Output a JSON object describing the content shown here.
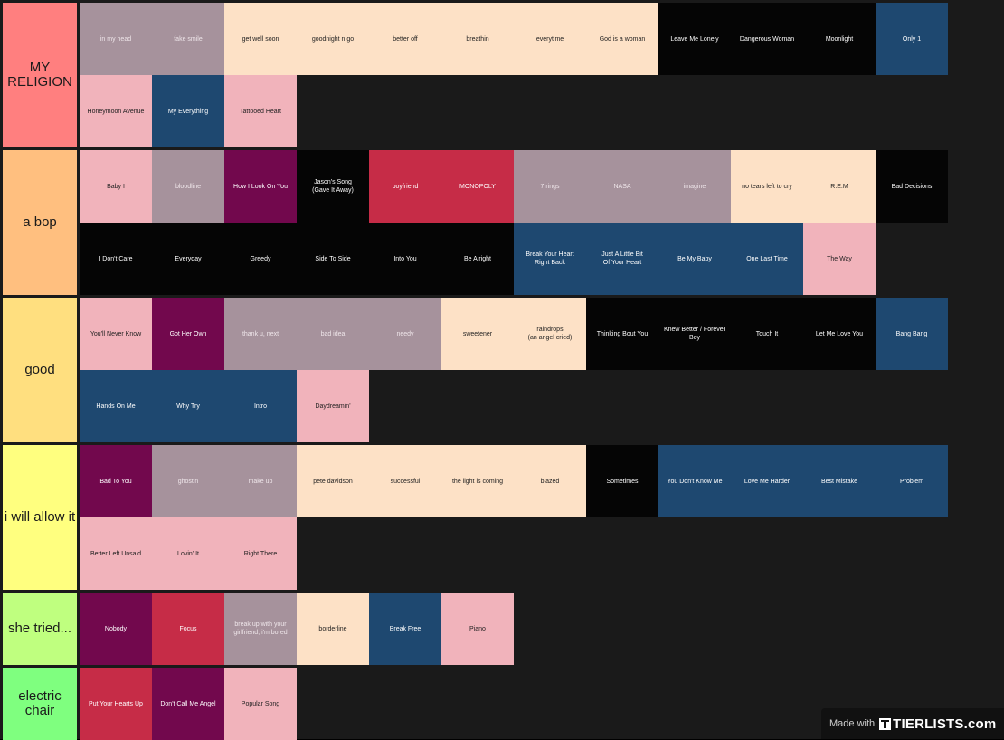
{
  "tiers": [
    {
      "label": "MY RELIGION",
      "color": "#ff7f7f",
      "items": [
        {
          "title": "in my head",
          "color": "mauve"
        },
        {
          "title": "fake smile",
          "color": "mauve"
        },
        {
          "title": "get well soon",
          "color": "peach"
        },
        {
          "title": "goodnight n go",
          "color": "peach"
        },
        {
          "title": "better off",
          "color": "peach"
        },
        {
          "title": "breathin",
          "color": "peach"
        },
        {
          "title": "everytime",
          "color": "peach"
        },
        {
          "title": "God is a woman",
          "color": "peach"
        },
        {
          "title": "Leave Me Lonely",
          "color": "black"
        },
        {
          "title": "Dangerous Woman",
          "color": "black"
        },
        {
          "title": "Moonlight",
          "color": "black"
        },
        {
          "title": "Only 1",
          "color": "navy"
        },
        {
          "title": "Honeymoon Avenue",
          "color": "pink"
        },
        {
          "title": "My Everything",
          "color": "navy"
        },
        {
          "title": "Tattooed Heart",
          "color": "pink"
        }
      ]
    },
    {
      "label": "a bop",
      "color": "#ffbf7f",
      "items": [
        {
          "title": "Baby I",
          "color": "pink"
        },
        {
          "title": "bloodline",
          "color": "mauve"
        },
        {
          "title": "How I Look On You",
          "color": "purple"
        },
        {
          "title": "Jason's Song\n(Gave It Away)",
          "color": "black"
        },
        {
          "title": "boyfriend",
          "color": "red"
        },
        {
          "title": "MONOPOLY",
          "color": "red"
        },
        {
          "title": "7 rings",
          "color": "mauve"
        },
        {
          "title": "NASA",
          "color": "mauve"
        },
        {
          "title": "imagine",
          "color": "mauve"
        },
        {
          "title": "no tears left to cry",
          "color": "peach"
        },
        {
          "title": "R.E.M",
          "color": "peach"
        },
        {
          "title": "Bad Decisions",
          "color": "black"
        },
        {
          "title": "I Don't Care",
          "color": "black"
        },
        {
          "title": "Everyday",
          "color": "black"
        },
        {
          "title": "Greedy",
          "color": "black"
        },
        {
          "title": "Side To Side",
          "color": "black"
        },
        {
          "title": "Into You",
          "color": "black"
        },
        {
          "title": "Be Alright",
          "color": "black"
        },
        {
          "title": "Break Your Heart\nRight Back",
          "color": "navy"
        },
        {
          "title": "Just A Little Bit\nOf Your Heart",
          "color": "navy"
        },
        {
          "title": "Be My Baby",
          "color": "navy"
        },
        {
          "title": "One Last Time",
          "color": "navy"
        },
        {
          "title": "The Way",
          "color": "pink"
        }
      ]
    },
    {
      "label": "good",
      "color": "#ffdf7f",
      "items": [
        {
          "title": "You'll Never Know",
          "color": "pink"
        },
        {
          "title": "Got Her Own",
          "color": "purple"
        },
        {
          "title": "thank u, next",
          "color": "mauve"
        },
        {
          "title": "bad idea",
          "color": "mauve"
        },
        {
          "title": "needy",
          "color": "mauve"
        },
        {
          "title": "sweetener",
          "color": "peach"
        },
        {
          "title": "raindrops\n(an angel cried)",
          "color": "peach"
        },
        {
          "title": "Thinking Bout You",
          "color": "black"
        },
        {
          "title": "Knew Better / Forever Boy",
          "color": "black"
        },
        {
          "title": "Touch It",
          "color": "black"
        },
        {
          "title": "Let Me Love You",
          "color": "black"
        },
        {
          "title": "Bang Bang",
          "color": "navy"
        },
        {
          "title": "Hands On Me",
          "color": "navy"
        },
        {
          "title": "Why Try",
          "color": "navy"
        },
        {
          "title": "Intro",
          "color": "navy"
        },
        {
          "title": "Daydreamin'",
          "color": "pink"
        }
      ]
    },
    {
      "label": "i will allow it",
      "color": "#ffff7f",
      "items": [
        {
          "title": "Bad To You",
          "color": "purple"
        },
        {
          "title": "ghostin",
          "color": "mauve"
        },
        {
          "title": "make up",
          "color": "mauve"
        },
        {
          "title": "pete davidson",
          "color": "peach"
        },
        {
          "title": "successful",
          "color": "peach"
        },
        {
          "title": "the light is coming",
          "color": "peach"
        },
        {
          "title": "blazed",
          "color": "peach"
        },
        {
          "title": "Sometimes",
          "color": "black"
        },
        {
          "title": "You Don't Know Me",
          "color": "navy"
        },
        {
          "title": "Love Me Harder",
          "color": "navy"
        },
        {
          "title": "Best Mistake",
          "color": "navy"
        },
        {
          "title": "Problem",
          "color": "navy"
        },
        {
          "title": "Better Left Unsaid",
          "color": "pink"
        },
        {
          "title": "Lovin' It",
          "color": "pink"
        },
        {
          "title": "Right There",
          "color": "pink"
        }
      ]
    },
    {
      "label": "she tried...",
      "color": "#bfff7f",
      "items": [
        {
          "title": "Nobody",
          "color": "purple"
        },
        {
          "title": "Focus",
          "color": "red"
        },
        {
          "title": "break up with your\ngirlfriend, i'm bored",
          "color": "mauve"
        },
        {
          "title": "borderline",
          "color": "peach"
        },
        {
          "title": "Break Free",
          "color": "navy"
        },
        {
          "title": "Piano",
          "color": "pink"
        }
      ]
    },
    {
      "label": "electric chair",
      "color": "#7fff7f",
      "items": [
        {
          "title": "Put Your Hearts Up",
          "color": "red"
        },
        {
          "title": "Don't Call Me Angel",
          "color": "purple"
        },
        {
          "title": "Popular Song",
          "color": "pink"
        }
      ]
    }
  ],
  "watermark": {
    "prefix": "Made with",
    "brand": "TIERLISTS.com"
  }
}
